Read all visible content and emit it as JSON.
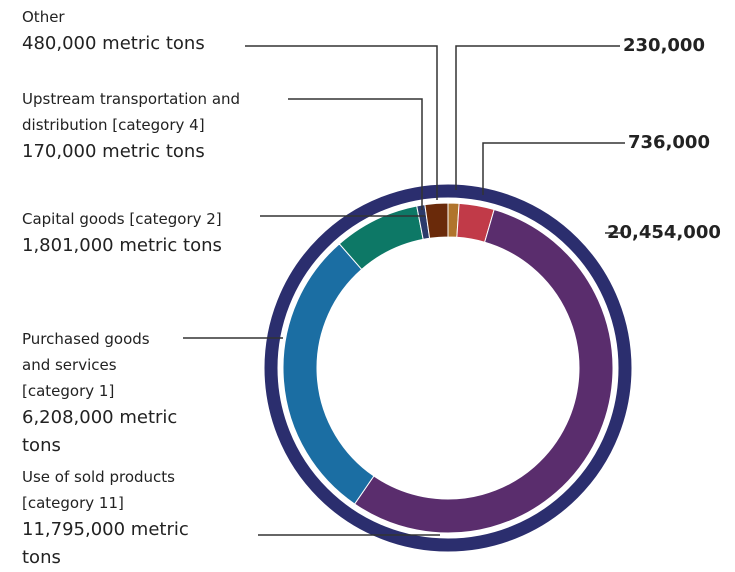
{
  "chart_data": {
    "type": "donut",
    "segments": [
      {
        "value": 230000,
        "value_label": "230,000",
        "color": "#b0742c"
      },
      {
        "value": 736000,
        "value_label": "736,000",
        "color": "#c13a48"
      },
      {
        "name": "Use of sold products [category 11]",
        "value": 11795000,
        "value_label": "11,795,000 metric tons",
        "color": "#5a2d6d"
      },
      {
        "name": "Purchased goods and services [category 1]",
        "value": 6208000,
        "value_label": "6,208,000 metric tons",
        "color": "#1b6ea3"
      },
      {
        "name": "Capital goods [category 2]",
        "value": 1801000,
        "value_label": "1,801,000 metric tons",
        "color": "#0d7866"
      },
      {
        "name": "Upstream transportation and distribution [category 4]",
        "value": 170000,
        "value_label": "170,000 metric tons",
        "color": "#2b3a6b"
      },
      {
        "name": "Other",
        "value": 480000,
        "value_label": "480,000 metric tons",
        "color": "#6a2a0a"
      }
    ],
    "outer_ring": {
      "value": 20454000,
      "value_label": "20,454,000",
      "color": "#2b2e6e"
    }
  }
}
